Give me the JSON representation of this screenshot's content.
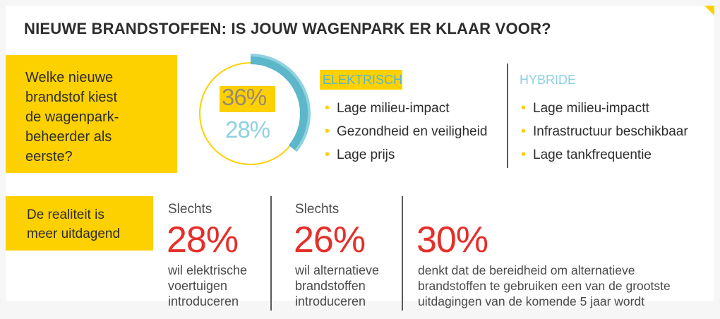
{
  "title": "NIEUWE BRANDSTOFFEN: IS JOUW WAGENPARK ER KLAAR VOOR?",
  "question": {
    "lines": [
      "Welke nieuwe",
      "brandstof kiest",
      "de wagenpark-",
      "beheerder als",
      "eerste?"
    ]
  },
  "ring": {
    "electric_pct": "36%",
    "hybrid_pct": "28%",
    "electric_fraction": 0.36,
    "colors": {
      "electric": "#fdd000",
      "hybrid": "#8ed1df",
      "arc_dark": "#5bb7c9"
    }
  },
  "electric": {
    "heading": "ELEKTRISCH",
    "items": [
      "Lage milieu-impact",
      "Gezondheid en veiligheid",
      "Lage prijs"
    ]
  },
  "hybrid": {
    "heading": "HYBRIDE",
    "items": [
      "Lage milieu-impactt",
      "Infrastructuur beschikbaar",
      "Lage tankfrequentie"
    ]
  },
  "reality": {
    "lines": [
      "De realiteit is",
      "meer uitdagend"
    ]
  },
  "stats": [
    {
      "prefix": "Slechts",
      "value": "28%",
      "lines": [
        "wil elektrische",
        "voertuigen",
        "introduceren"
      ]
    },
    {
      "prefix": "Slechts",
      "value": "26%",
      "lines": [
        "wil alternatieve",
        "brandstoffen",
        "introduceren"
      ]
    },
    {
      "prefix": "",
      "value": "30%",
      "lines": [
        "denkt dat de bereidheid om alternatieve",
        "brandstoffen te gebruiken een van de grootste",
        "uitdagingen van de komende 5 jaar wordt"
      ]
    }
  ],
  "colors": {
    "accent_yellow": "#fdd000",
    "stat_red": "#e52f2a",
    "text_dark": "#2d2d2d"
  }
}
